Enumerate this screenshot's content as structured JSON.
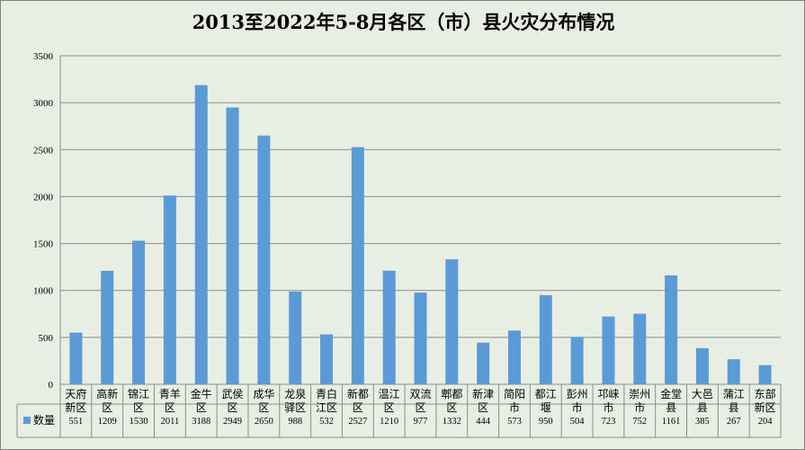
{
  "chart_data": {
    "type": "bar",
    "title": "2013至2022年5-8月各区（市）县火灾分布情况",
    "ylim": [
      0,
      3500
    ],
    "yticks": [
      0,
      500,
      1000,
      1500,
      2000,
      2500,
      3000,
      3500
    ],
    "grid": true,
    "legend_placement": "data-table-left",
    "bar_color": "#5b9bd5",
    "categories": [
      [
        "天府",
        "新区"
      ],
      [
        "高新",
        "区"
      ],
      [
        "锦江",
        "区"
      ],
      [
        "青羊",
        "区"
      ],
      [
        "金牛",
        "区"
      ],
      [
        "武侯",
        "区"
      ],
      [
        "成华",
        "区"
      ],
      [
        "龙泉",
        "驿区"
      ],
      [
        "青白",
        "江区"
      ],
      [
        "新都",
        "区"
      ],
      [
        "温江",
        "区"
      ],
      [
        "双流",
        "区"
      ],
      [
        "郫都",
        "区"
      ],
      [
        "新津",
        "区"
      ],
      [
        "简阳",
        "市"
      ],
      [
        "都江",
        "堰"
      ],
      [
        "彭州",
        "市"
      ],
      [
        "邛崃",
        "市"
      ],
      [
        "崇州",
        "市"
      ],
      [
        "金堂",
        "县"
      ],
      [
        "大邑",
        "县"
      ],
      [
        "蒲江",
        "县"
      ],
      [
        "东部",
        "新区"
      ]
    ],
    "series": [
      {
        "name": "数量",
        "values": [
          551,
          1209,
          1530,
          2011,
          3188,
          2949,
          2650,
          988,
          532,
          2527,
          1210,
          977,
          1332,
          444,
          573,
          950,
          504,
          723,
          752,
          1161,
          385,
          267,
          204
        ]
      }
    ]
  }
}
